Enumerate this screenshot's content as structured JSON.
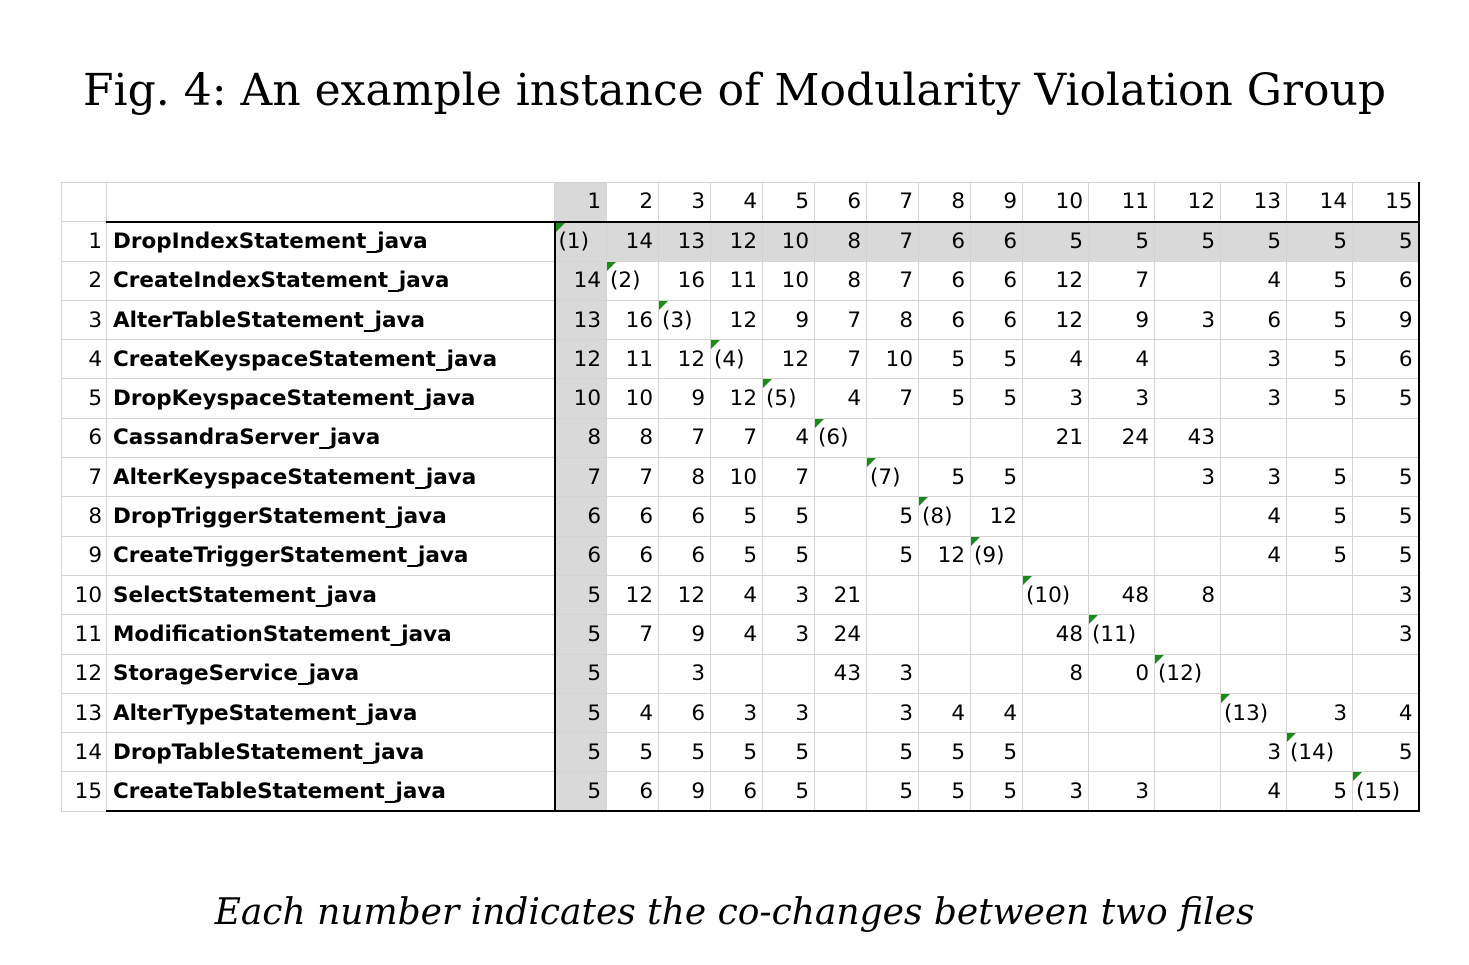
{
  "figure": {
    "title": "Fig. 4: An example instance of Modularity Violation Group",
    "caption": "Each number indicates the co-changes between two files"
  },
  "colors": {
    "diagonal_marker": "#1a8a1a",
    "highlight_fill": "#d9d9d9",
    "grid_line": "#d4d4d4"
  },
  "chart_data": {
    "type": "table",
    "column_headers": [
      "1",
      "2",
      "3",
      "4",
      "5",
      "6",
      "7",
      "8",
      "9",
      "10",
      "11",
      "12",
      "13",
      "14",
      "15"
    ],
    "rows": [
      {
        "num": "1",
        "file": "DropIndexStatement_java",
        "cells": [
          "(1)",
          "14",
          "13",
          "12",
          "10",
          "8",
          "7",
          "6",
          "6",
          "5",
          "5",
          "5",
          "5",
          "5",
          "5"
        ]
      },
      {
        "num": "2",
        "file": "CreateIndexStatement_java",
        "cells": [
          "14",
          "(2)",
          "16",
          "11",
          "10",
          "8",
          "7",
          "6",
          "6",
          "12",
          "7",
          "",
          "4",
          "5",
          "6"
        ]
      },
      {
        "num": "3",
        "file": "AlterTableStatement_java",
        "cells": [
          "13",
          "16",
          "(3)",
          "12",
          "9",
          "7",
          "8",
          "6",
          "6",
          "12",
          "9",
          "3",
          "6",
          "5",
          "9"
        ]
      },
      {
        "num": "4",
        "file": "CreateKeyspaceStatement_java",
        "cells": [
          "12",
          "11",
          "12",
          "(4)",
          "12",
          "7",
          "10",
          "5",
          "5",
          "4",
          "4",
          "",
          "3",
          "5",
          "6"
        ]
      },
      {
        "num": "5",
        "file": "DropKeyspaceStatement_java",
        "cells": [
          "10",
          "10",
          "9",
          "12",
          "(5)",
          "4",
          "7",
          "5",
          "5",
          "3",
          "3",
          "",
          "3",
          "5",
          "5"
        ]
      },
      {
        "num": "6",
        "file": "CassandraServer_java",
        "cells": [
          "8",
          "8",
          "7",
          "7",
          "4",
          "(6)",
          "",
          "",
          "",
          "21",
          "24",
          "43",
          "",
          "",
          ""
        ]
      },
      {
        "num": "7",
        "file": "AlterKeyspaceStatement_java",
        "cells": [
          "7",
          "7",
          "8",
          "10",
          "7",
          "",
          "(7)",
          "5",
          "5",
          "",
          "",
          "3",
          "3",
          "5",
          "5"
        ]
      },
      {
        "num": "8",
        "file": "DropTriggerStatement_java",
        "cells": [
          "6",
          "6",
          "6",
          "5",
          "5",
          "",
          "5",
          "(8)",
          "12",
          "",
          "",
          "",
          "4",
          "5",
          "5"
        ]
      },
      {
        "num": "9",
        "file": "CreateTriggerStatement_java",
        "cells": [
          "6",
          "6",
          "6",
          "5",
          "5",
          "",
          "5",
          "12",
          "(9)",
          "",
          "",
          "",
          "4",
          "5",
          "5"
        ]
      },
      {
        "num": "10",
        "file": "SelectStatement_java",
        "cells": [
          "5",
          "12",
          "12",
          "4",
          "3",
          "21",
          "",
          "",
          "",
          "(10)",
          "48",
          "8",
          "",
          "",
          "3"
        ]
      },
      {
        "num": "11",
        "file": "ModificationStatement_java",
        "cells": [
          "5",
          "7",
          "9",
          "4",
          "3",
          "24",
          "",
          "",
          "",
          "48",
          "(11)",
          "",
          "",
          "",
          "3"
        ]
      },
      {
        "num": "12",
        "file": "StorageService_java",
        "cells": [
          "5",
          "",
          "3",
          "",
          "",
          "43",
          "3",
          "",
          "",
          "8",
          "0",
          "(12)",
          "",
          "",
          ""
        ]
      },
      {
        "num": "13",
        "file": "AlterTypeStatement_java",
        "cells": [
          "5",
          "4",
          "6",
          "3",
          "3",
          "",
          "3",
          "4",
          "4",
          "",
          "",
          "",
          "(13)",
          "3",
          "4"
        ]
      },
      {
        "num": "14",
        "file": "DropTableStatement_java",
        "cells": [
          "5",
          "5",
          "5",
          "5",
          "5",
          "",
          "5",
          "5",
          "5",
          "",
          "",
          "",
          "3",
          "(14)",
          "5"
        ]
      },
      {
        "num": "15",
        "file": "CreateTableStatement_java",
        "cells": [
          "5",
          "6",
          "9",
          "6",
          "5",
          "",
          "5",
          "5",
          "5",
          "3",
          "3",
          "",
          "4",
          "5",
          "(15)"
        ]
      }
    ]
  }
}
